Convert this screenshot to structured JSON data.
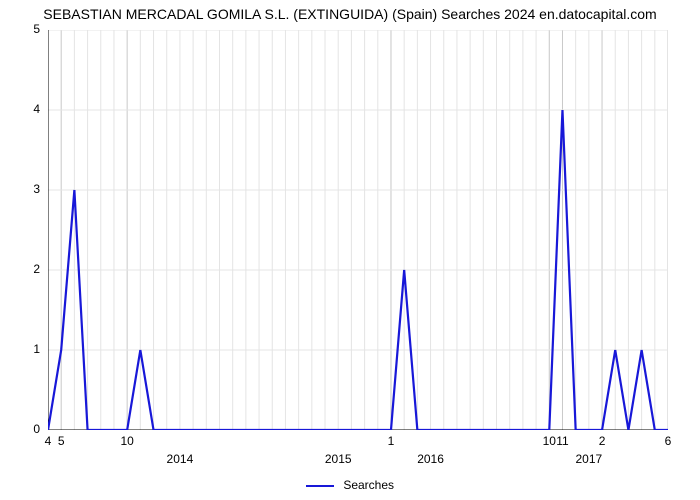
{
  "title": "SEBASTIAN MERCADAL GOMILA S.L. (EXTINGUIDA) (Spain) Searches 2024 en.datocapital.com",
  "chart": {
    "type": "line",
    "ylim": [
      0,
      5
    ],
    "ytick_step": 1,
    "yticks": [
      0,
      1,
      2,
      3,
      4,
      5
    ],
    "line_color": "#1818d8",
    "line_width": 2.2,
    "background_color": "#ffffff",
    "grid_color_major": "#c8c8c8",
    "grid_color_minor": "#e4e4e4",
    "axis_color": "#000000",
    "title_fontsize": 14,
    "tick_fontsize": 12,
    "series": [
      {
        "label": "4",
        "y": 0
      },
      {
        "label": "5",
        "y": 1
      },
      {
        "y": 3
      },
      {
        "y": 0
      },
      {
        "y": 0
      },
      {
        "y": 0
      },
      {
        "label": "10",
        "y": 0
      },
      {
        "y": 1
      },
      {
        "y": 0
      },
      {
        "y": 0
      },
      {
        "y": 0
      },
      {
        "y": 0
      },
      {
        "y": 0
      },
      {
        "y": 0
      },
      {
        "y": 0
      },
      {
        "y": 0
      },
      {
        "y": 0
      },
      {
        "y": 0
      },
      {
        "y": 0
      },
      {
        "y": 0
      },
      {
        "y": 0
      },
      {
        "y": 0
      },
      {
        "y": 0
      },
      {
        "y": 0
      },
      {
        "y": 0
      },
      {
        "y": 0
      },
      {
        "label": "1",
        "y": 0
      },
      {
        "y": 2
      },
      {
        "y": 0
      },
      {
        "y": 0
      },
      {
        "y": 0
      },
      {
        "y": 0
      },
      {
        "y": 0
      },
      {
        "y": 0
      },
      {
        "y": 0
      },
      {
        "y": 0
      },
      {
        "y": 0
      },
      {
        "y": 0
      },
      {
        "label": "10",
        "y": 0
      },
      {
        "label": "11",
        "y": 4
      },
      {
        "y": 0
      },
      {
        "y": 0
      },
      {
        "label": "2",
        "y": 0
      },
      {
        "y": 1
      },
      {
        "y": 0
      },
      {
        "y": 1
      },
      {
        "y": 0
      },
      {
        "label": "6",
        "y": 0
      }
    ],
    "year_positions": [
      {
        "label": "2014",
        "index": 10
      },
      {
        "label": "2015",
        "index": 22
      },
      {
        "label": "2016",
        "index": 29
      },
      {
        "label": "2017",
        "index": 41
      }
    ]
  },
  "legend": {
    "label": "Searches"
  }
}
